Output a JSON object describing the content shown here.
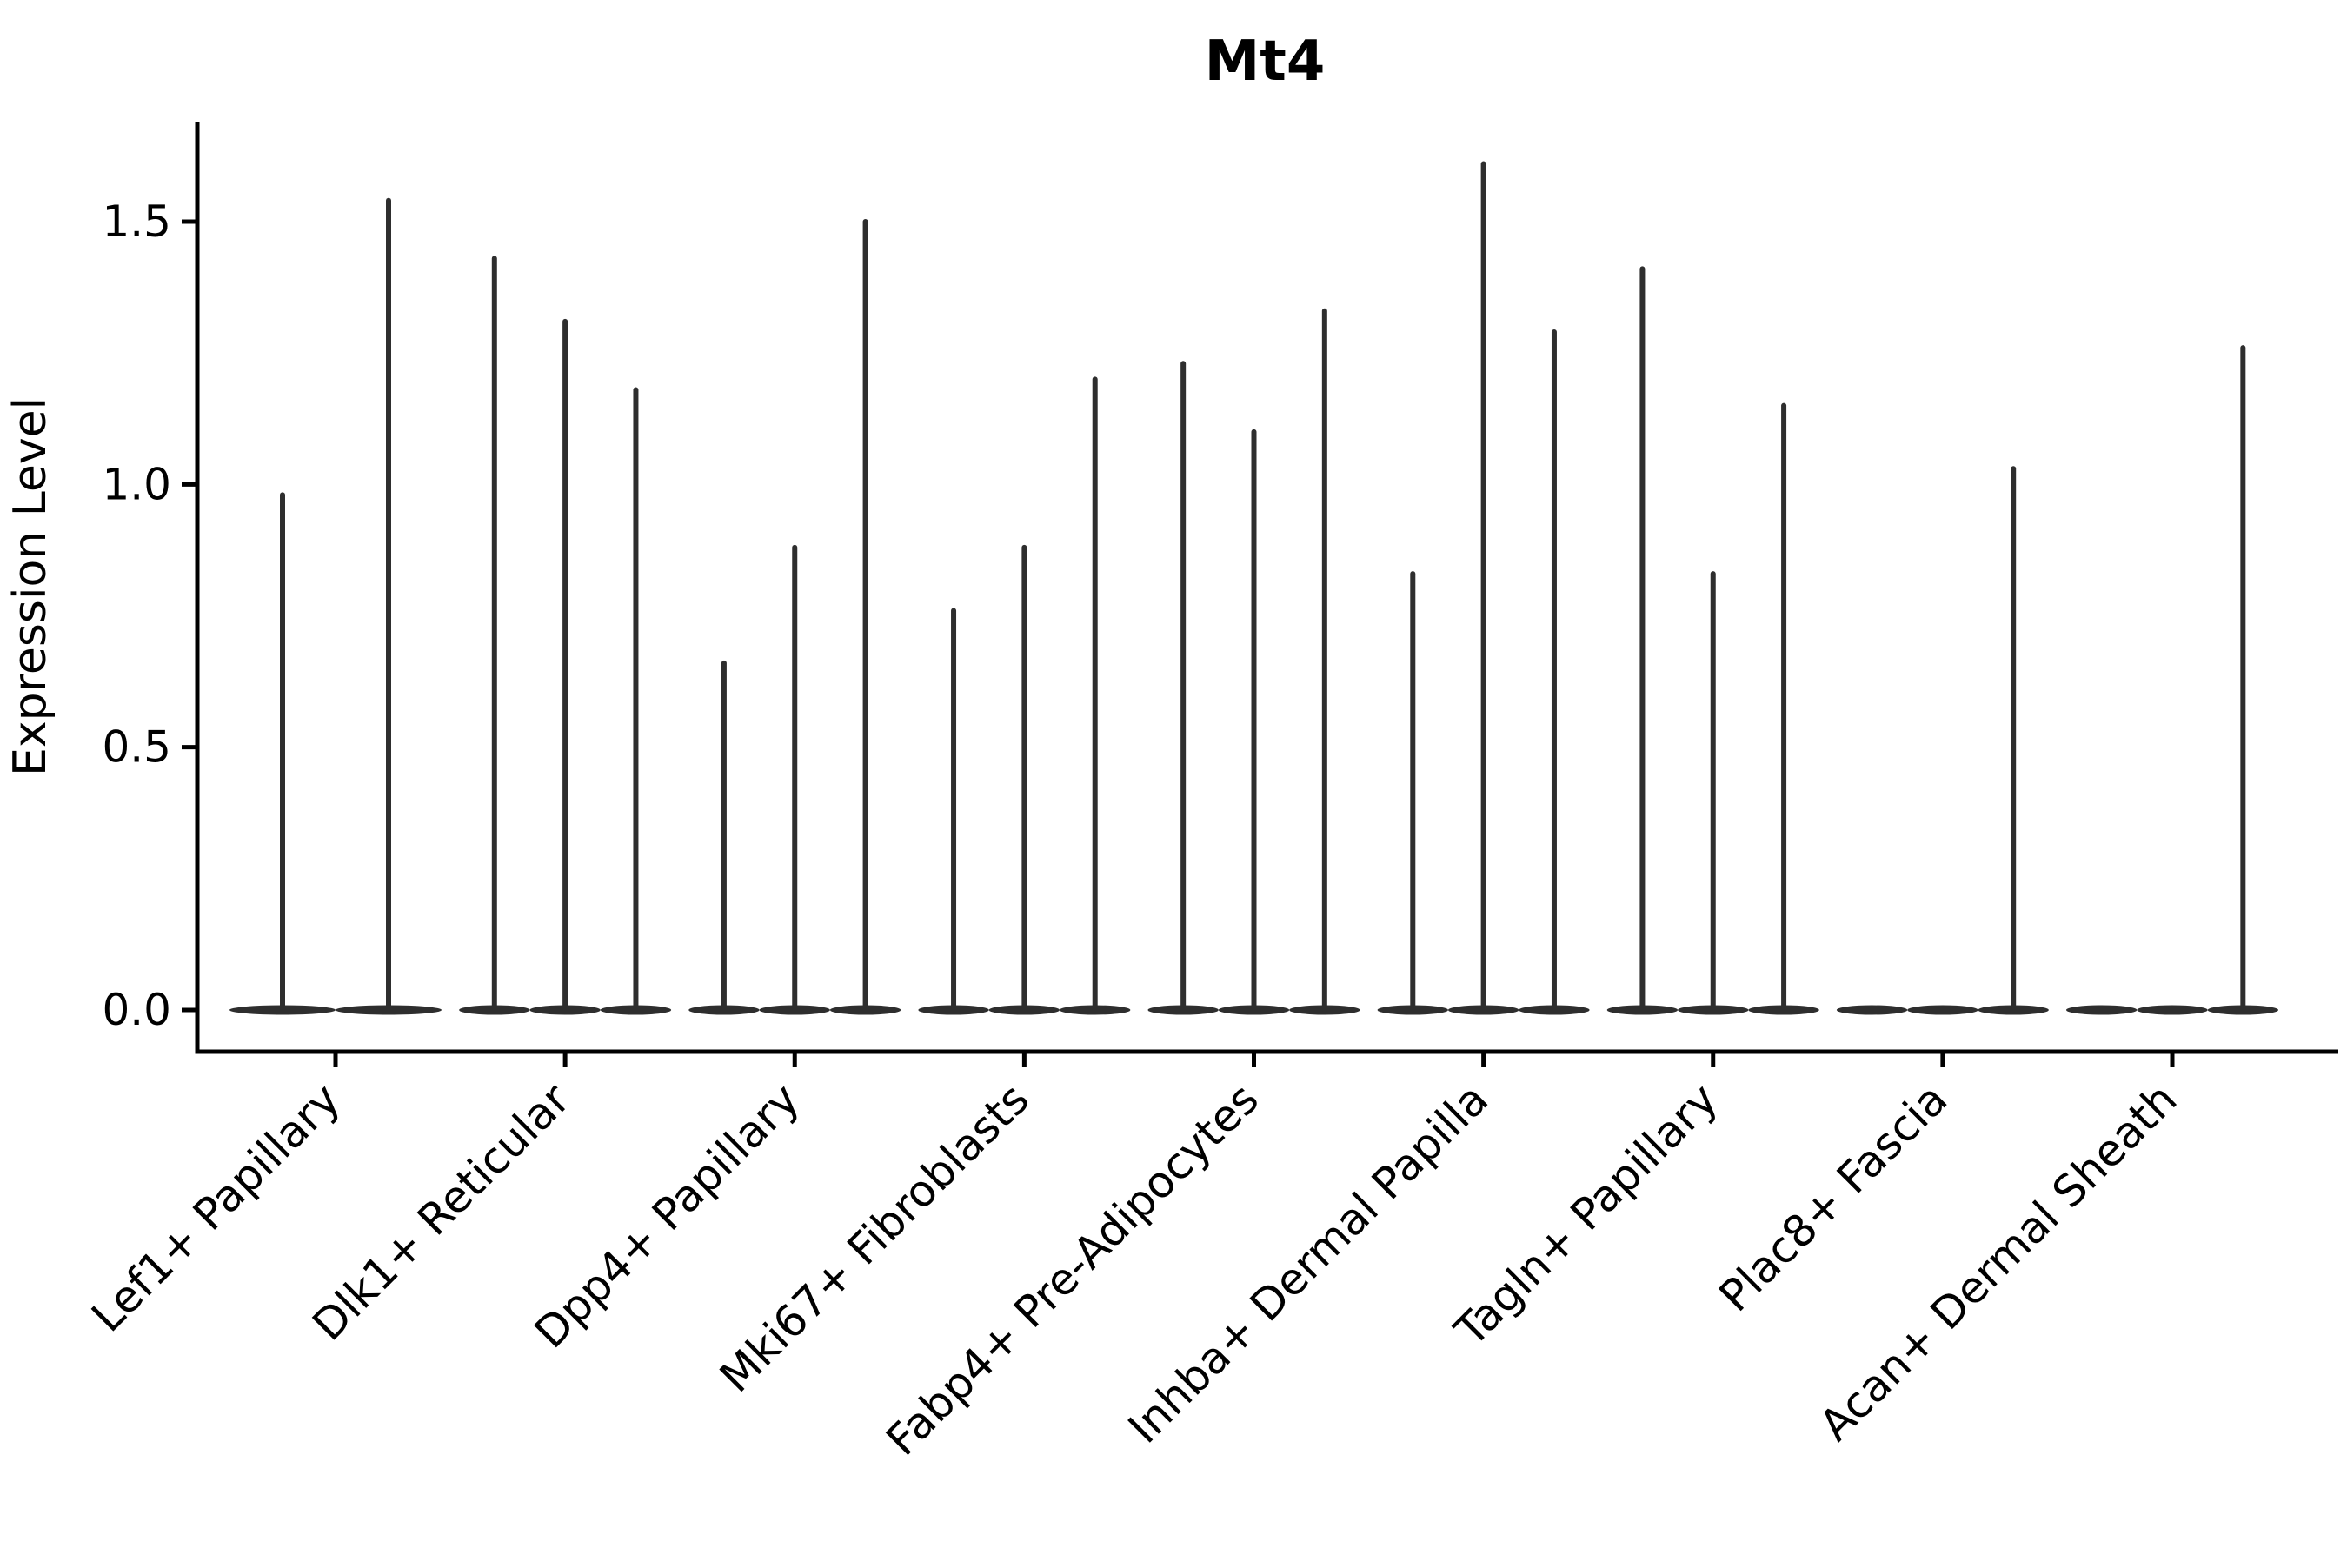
{
  "page": {
    "title": "Mt4"
  },
  "chart_data": {
    "type": "violin",
    "title": "Mt4",
    "xlabel": "",
    "ylabel": "Expression Level",
    "ylim": [
      -0.08,
      1.69
    ],
    "yticks": [
      0,
      0.5,
      1.0,
      1.5
    ],
    "ytick_labels": [
      "0.0",
      "0.5",
      "1.0",
      "1.5"
    ],
    "grid": false,
    "legend": "none",
    "violin_color": "#2e2e2e",
    "axis_color": "#000000",
    "description": "Violin plot of Mt4 expression per cluster; each cluster holds multiple narrow violins whose mass sits at 0 with a thin spike reaching the maximum expression value.",
    "categories": [
      "Lef1+ Papillary",
      "Dlk1+ Reticular",
      "Dpp4+ Papillary",
      "Mki67+ Fibroblasts",
      "Fabp4+ Pre-Adipocytes",
      "Inhba+ Dermal Papilla",
      "Tagln+ Papillary",
      "Plac8+ Fascia",
      "Acan+ Dermal Sheath"
    ],
    "groups": [
      {
        "category": "Lef1+ Papillary",
        "violin_max_values": [
          0.98,
          1.54
        ]
      },
      {
        "category": "Dlk1+ Reticular",
        "violin_max_values": [
          1.43,
          1.31,
          1.18
        ]
      },
      {
        "category": "Dpp4+ Papillary",
        "violin_max_values": [
          0.66,
          0.88,
          1.5
        ]
      },
      {
        "category": "Mki67+ Fibroblasts",
        "violin_max_values": [
          0.76,
          0.88,
          1.2
        ]
      },
      {
        "category": "Fabp4+ Pre-Adipocytes",
        "violin_max_values": [
          1.23,
          1.1,
          1.33
        ]
      },
      {
        "category": "Inhba+ Dermal Papilla",
        "violin_max_values": [
          0.83,
          1.61,
          1.29
        ]
      },
      {
        "category": "Tagln+ Papillary",
        "violin_max_values": [
          1.41,
          0.83,
          1.15
        ]
      },
      {
        "category": "Plac8+ Fascia",
        "violin_max_values": [
          0.0,
          0.0,
          1.03
        ]
      },
      {
        "category": "Acan+ Dermal Sheath",
        "violin_max_values": [
          0.0,
          0.0,
          1.26
        ]
      }
    ]
  }
}
